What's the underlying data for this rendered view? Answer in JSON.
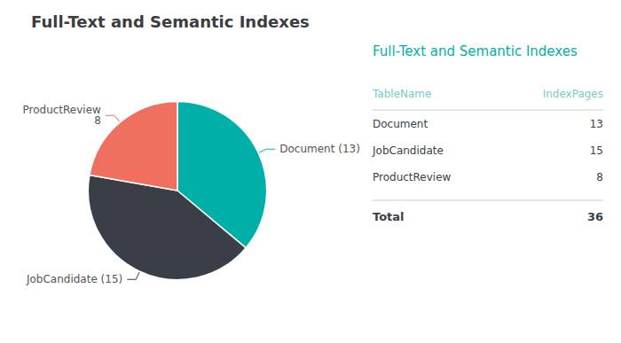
{
  "chart_data": [
    {
      "type": "pie",
      "title": "Full-Text and Semantic Indexes",
      "categories": [
        "Document",
        "JobCandidate",
        "ProductReview"
      ],
      "values": [
        13,
        15,
        8
      ],
      "colors": [
        "#00B0A8",
        "#3A3F47",
        "#F07060"
      ],
      "data_labels": true,
      "value_labels": [
        "Document (13)",
        "JobCandidate (15)",
        "ProductReview\n8"
      ]
    },
    {
      "type": "table",
      "title": "Full-Text and Semantic Indexes",
      "columns": [
        "TableName",
        "IndexPages"
      ],
      "categories": [
        "Document",
        "JobCandidate",
        "ProductReview"
      ],
      "values": [
        13,
        15,
        8
      ],
      "total_label": "Total",
      "total": 36
    }
  ]
}
